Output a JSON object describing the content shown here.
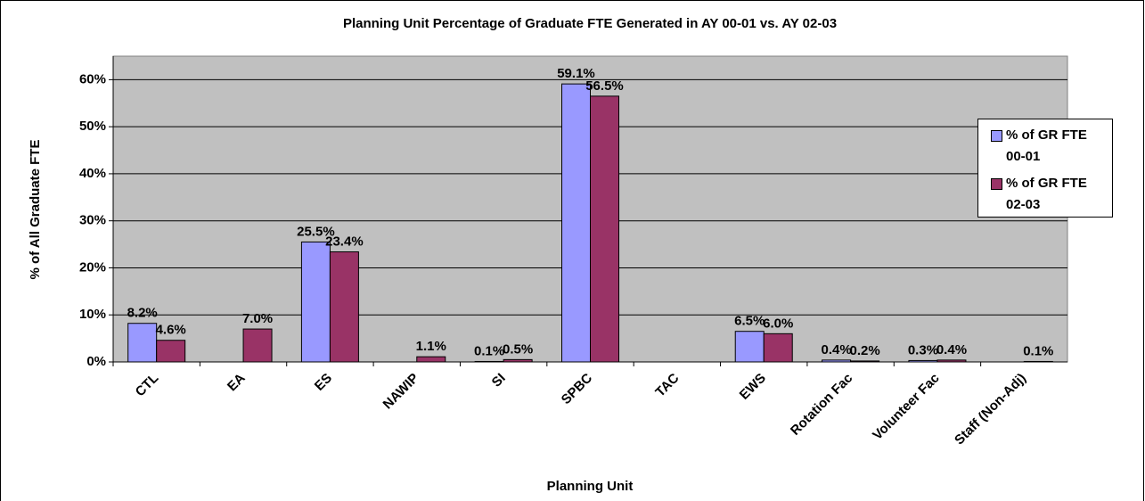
{
  "chart_data": {
    "type": "bar",
    "title": "Planning Unit Percentage of Graduate FTE Generated in AY 00-01 vs. AY 02-03",
    "x_label": "Planning Unit",
    "y_label": "% of All Graduate FTE",
    "categories": [
      "CTL",
      "EA",
      "ES",
      "NAWIP",
      "SI",
      "SPBC",
      "TAC",
      "EWS",
      "Rotation Fac",
      "Volunteer Fac",
      "Staff (Non-Adj)"
    ],
    "series": [
      {
        "name": "% of GR FTE 00-01",
        "color": "#9999ff",
        "values": [
          8.2,
          null,
          25.5,
          null,
          0.1,
          59.1,
          null,
          6.5,
          0.4,
          0.3,
          null
        ],
        "value_labels": [
          "8.2%",
          null,
          "25.5%",
          null,
          "0.1%",
          "59.1%",
          null,
          "6.5%",
          "0.4%",
          "0.3%",
          null
        ]
      },
      {
        "name": "% of GR FTE 02-03",
        "color": "#993366",
        "values": [
          4.6,
          7.0,
          23.4,
          1.1,
          0.5,
          56.5,
          null,
          6.0,
          0.2,
          0.4,
          0.1
        ],
        "value_labels": [
          "4.6%",
          "7.0%",
          "23.4%",
          "1.1%",
          "0.5%",
          "56.5%",
          null,
          "6.0%",
          "0.2%",
          "0.4%",
          "0.1%"
        ]
      }
    ],
    "ylim": [
      0,
      65
    ],
    "yticks": [
      {
        "value": 0,
        "label": "0%"
      },
      {
        "value": 10,
        "label": "10%"
      },
      {
        "value": 20,
        "label": "20%"
      },
      {
        "value": 30,
        "label": "30%"
      },
      {
        "value": 40,
        "label": "40%"
      },
      {
        "value": 50,
        "label": "50%"
      },
      {
        "value": 60,
        "label": "60%"
      }
    ],
    "grid": true,
    "legend": "right"
  }
}
